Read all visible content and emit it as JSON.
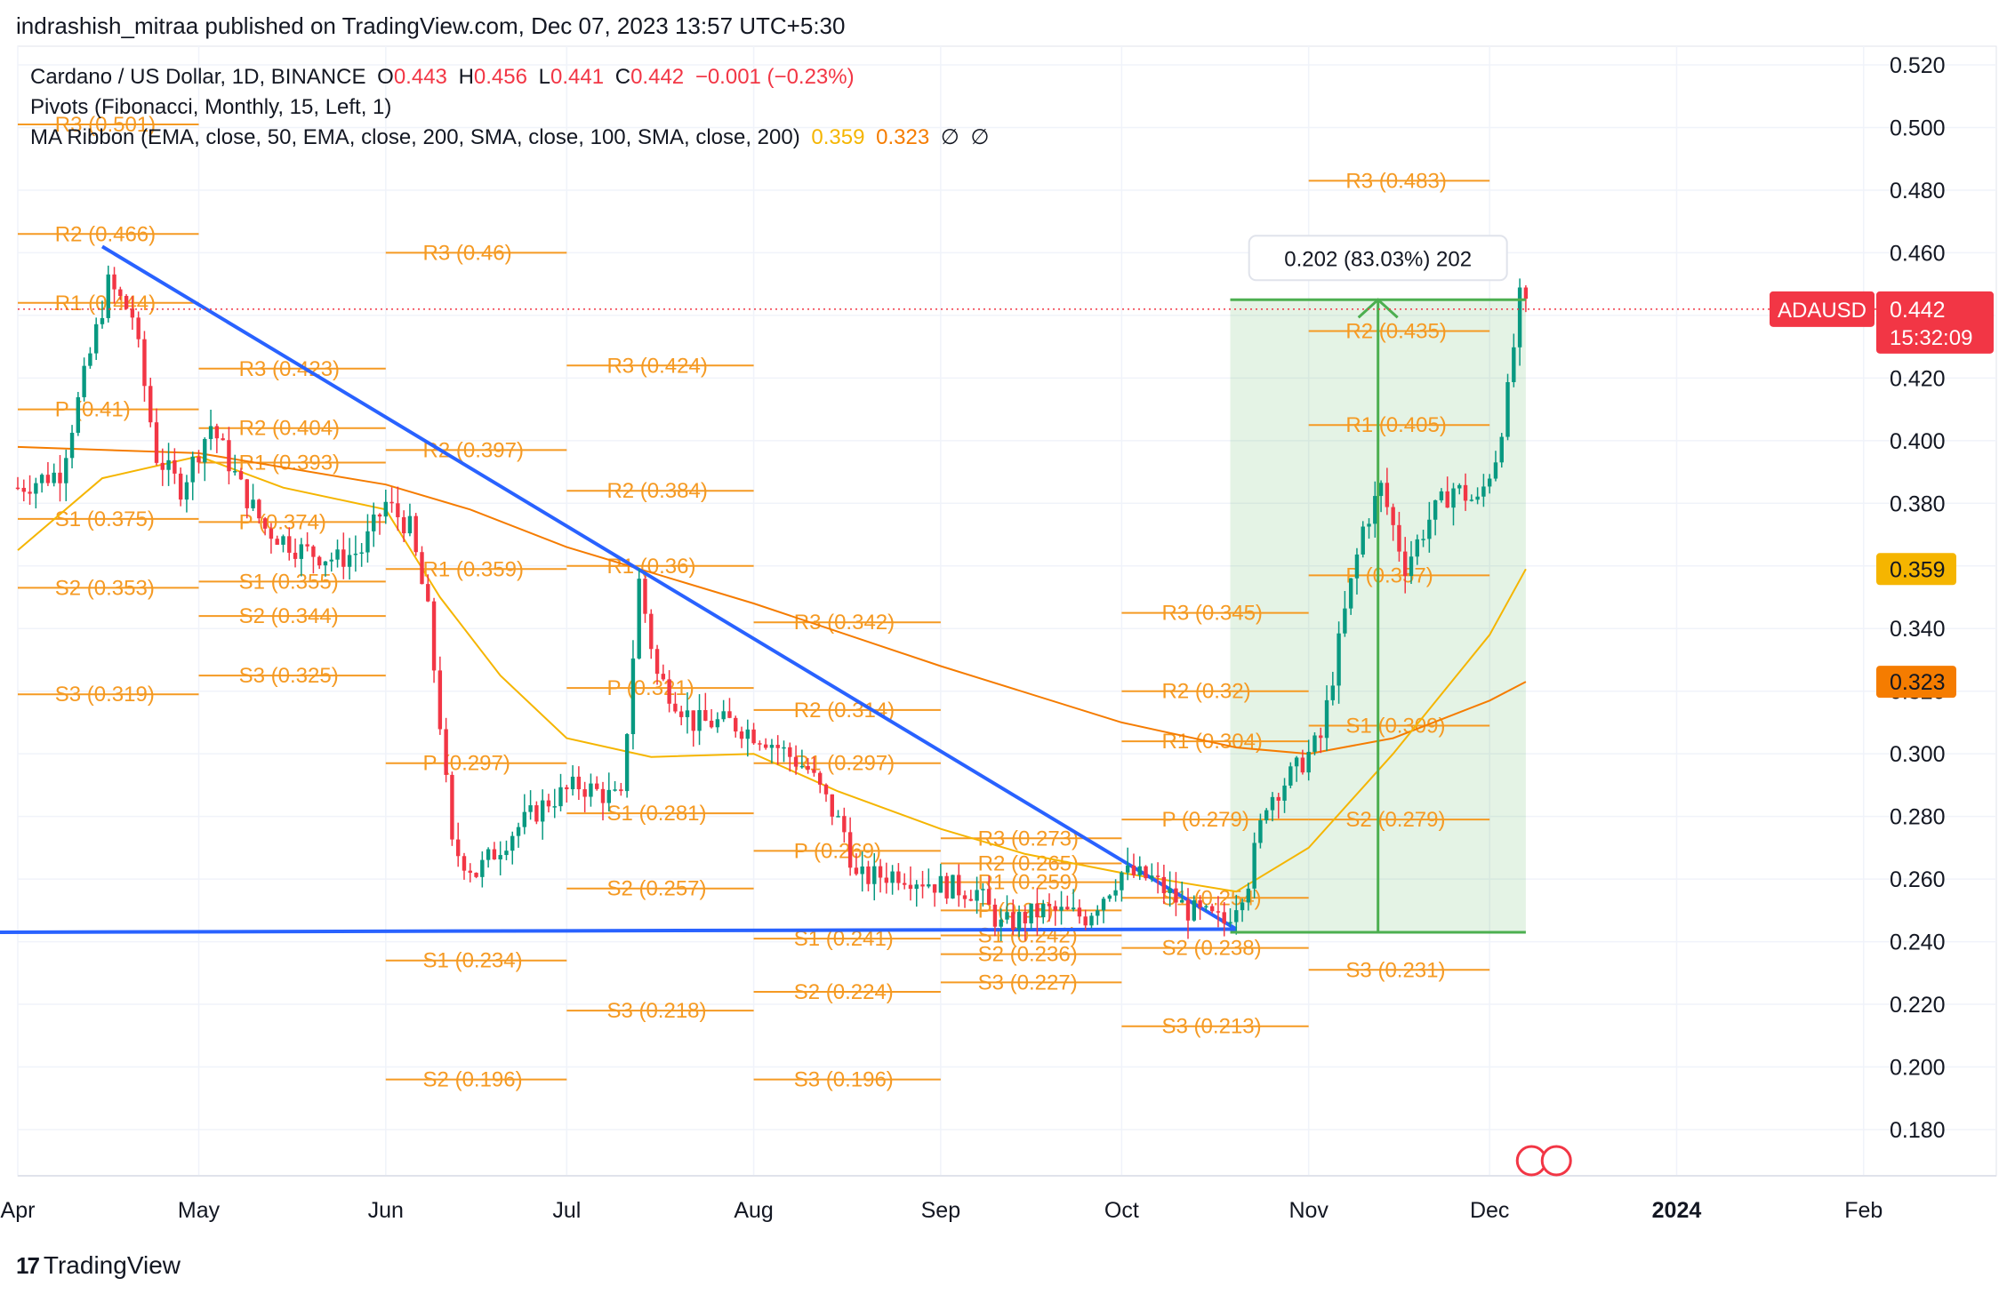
{
  "header": {
    "published": "indrashish_mitraa published on TradingView.com, Dec 07, 2023 13:57 UTC+5:30"
  },
  "legend": {
    "symbol": "Cardano / US Dollar, 1D, BINANCE",
    "o_label": "O",
    "o_value": "0.443",
    "h_label": "H",
    "h_value": "0.456",
    "l_label": "L",
    "l_value": "0.441",
    "c_label": "C",
    "c_value": "0.442",
    "change": "−0.001 (−0.23%)",
    "pivots": "Pivots (Fibonacci, Monthly, 15, Left, 1)",
    "ma_ribbon": "MA Ribbon (EMA, close, 50, EMA, close, 200, SMA, close, 100, SMA, close, 200)",
    "ma1_value": "0.359",
    "ma2_value": "0.323",
    "ma3_value": "∅",
    "ma4_value": "∅"
  },
  "footer": {
    "logo": "17",
    "brand": "TradingView"
  },
  "colors": {
    "candle_up": "#089981",
    "candle_down": "#f23645",
    "pivot": "#f59a23",
    "trendline": "#2962ff",
    "measure": "#4caf50",
    "ema50": "#f5b500",
    "ema200": "#f57c00"
  },
  "chart_data": {
    "type": "candlestick",
    "symbol": "ADAUSD",
    "title": "Cardano / US Dollar, 1D, BINANCE",
    "ylim": [
      0.17,
      0.525
    ],
    "y_ticks": [
      "0.520",
      "0.500",
      "0.480",
      "0.460",
      "0.440",
      "0.420",
      "0.400",
      "0.380",
      "0.360",
      "0.340",
      "0.320",
      "0.300",
      "0.280",
      "0.260",
      "0.240",
      "0.220",
      "0.200",
      "0.180"
    ],
    "x_ticks": [
      "Apr",
      "May",
      "Jun",
      "Jul",
      "Aug",
      "Sep",
      "Oct",
      "Nov",
      "Dec",
      "2024",
      "Feb"
    ],
    "x_tick_dates": [
      "2023-04-01",
      "2023-05-01",
      "2023-06-01",
      "2023-07-01",
      "2023-08-01",
      "2023-09-01",
      "2023-10-01",
      "2023-11-01",
      "2023-12-01",
      "2024-01-01",
      "2024-02-01"
    ],
    "x_range": [
      "2023-04-01",
      "2024-02-23"
    ],
    "price_label": {
      "symbol": "ADAUSD",
      "value": "0.442",
      "countdown": "15:32:09",
      "price": 0.442
    },
    "ma_labels": [
      {
        "value": "0.359",
        "price": 0.359,
        "color": "#f5b500"
      },
      {
        "value": "0.323",
        "price": 0.323,
        "color": "#f57c00"
      }
    ],
    "measure": {
      "label": "0.202 (83.03%) 202",
      "start_date": "2023-10-19",
      "end_date": "2023-12-07",
      "low": 0.243,
      "high": 0.445
    },
    "trendlines": [
      {
        "from": [
          "2023-04-15",
          0.462
        ],
        "to": [
          "2023-10-20",
          0.244
        ]
      },
      {
        "from": [
          "2023-03-25",
          0.243
        ],
        "to": [
          "2023-10-20",
          0.244
        ]
      }
    ],
    "pivots": [
      {
        "month": "2023-04",
        "levels": [
          {
            "label": "R2 (0.466)",
            "value": 0.466
          },
          {
            "label": "R1 (0.444)",
            "value": 0.444
          },
          {
            "label": "P (0.41)",
            "value": 0.41
          },
          {
            "label": "S1 (0.375)",
            "value": 0.375
          },
          {
            "label": "S2 (0.353)",
            "value": 0.353
          },
          {
            "label": "S3 (0.319)",
            "value": 0.319
          },
          {
            "label": "R3 (0.501)",
            "value": 0.501
          }
        ]
      },
      {
        "month": "2023-05",
        "levels": [
          {
            "label": "R3 (0.423)",
            "value": 0.423
          },
          {
            "label": "R2 (0.404)",
            "value": 0.404
          },
          {
            "label": "R1 (0.393)",
            "value": 0.393
          },
          {
            "label": "P (0.374)",
            "value": 0.374
          },
          {
            "label": "S1 (0.355)",
            "value": 0.355
          },
          {
            "label": "S2 (0.344)",
            "value": 0.344
          },
          {
            "label": "S3 (0.325)",
            "value": 0.325
          }
        ]
      },
      {
        "month": "2023-06",
        "levels": [
          {
            "label": "R3 (0.46)",
            "value": 0.46
          },
          {
            "label": "R2 (0.397)",
            "value": 0.397
          },
          {
            "label": "R1 (0.359)",
            "value": 0.359
          },
          {
            "label": "P (0.297)",
            "value": 0.297
          },
          {
            "label": "S1 (0.234)",
            "value": 0.234
          },
          {
            "label": "S2 (0.196)",
            "value": 0.196
          }
        ]
      },
      {
        "month": "2023-07",
        "levels": [
          {
            "label": "R3 (0.424)",
            "value": 0.424
          },
          {
            "label": "R2 (0.384)",
            "value": 0.384
          },
          {
            "label": "R1 (0.36)",
            "value": 0.36
          },
          {
            "label": "P (0.321)",
            "value": 0.321
          },
          {
            "label": "S1 (0.281)",
            "value": 0.281
          },
          {
            "label": "S2 (0.257)",
            "value": 0.257
          },
          {
            "label": "S3 (0.218)",
            "value": 0.218
          }
        ]
      },
      {
        "month": "2023-08",
        "levels": [
          {
            "label": "R3 (0.342)",
            "value": 0.342
          },
          {
            "label": "R2 (0.314)",
            "value": 0.314
          },
          {
            "label": "R1 (0.297)",
            "value": 0.297
          },
          {
            "label": "P (0.269)",
            "value": 0.269
          },
          {
            "label": "S1 (0.241)",
            "value": 0.241
          },
          {
            "label": "S2 (0.224)",
            "value": 0.224
          },
          {
            "label": "S3 (0.196)",
            "value": 0.196
          }
        ]
      },
      {
        "month": "2023-09",
        "levels": [
          {
            "label": "R3 (0.273)",
            "value": 0.273
          },
          {
            "label": "R2 (0.265)",
            "value": 0.265
          },
          {
            "label": "R1 (0.259)",
            "value": 0.259
          },
          {
            "label": "P (0.25)",
            "value": 0.25
          },
          {
            "label": "S1 (0.242)",
            "value": 0.242
          },
          {
            "label": "S2 (0.236)",
            "value": 0.236
          },
          {
            "label": "S3 (0.227)",
            "value": 0.227
          }
        ]
      },
      {
        "month": "2023-10",
        "levels": [
          {
            "label": "R3 (0.345)",
            "value": 0.345
          },
          {
            "label": "R2 (0.32)",
            "value": 0.32
          },
          {
            "label": "R1 (0.304)",
            "value": 0.304
          },
          {
            "label": "P (0.279)",
            "value": 0.279
          },
          {
            "label": "S1 (0.254)",
            "value": 0.254
          },
          {
            "label": "S2 (0.238)",
            "value": 0.238
          },
          {
            "label": "S3 (0.213)",
            "value": 0.213
          }
        ]
      },
      {
        "month": "2023-11",
        "levels": [
          {
            "label": "R3 (0.483)",
            "value": 0.483
          },
          {
            "label": "R2 (0.435)",
            "value": 0.435
          },
          {
            "label": "R1 (0.405)",
            "value": 0.405
          },
          {
            "label": "P (0.357)",
            "value": 0.357
          },
          {
            "label": "S1 (0.309)",
            "value": 0.309
          },
          {
            "label": "S2 (0.279)",
            "value": 0.279
          },
          {
            "label": "S3 (0.231)",
            "value": 0.231
          }
        ]
      }
    ],
    "ema50": [
      [
        "2023-04-01",
        0.365
      ],
      [
        "2023-04-15",
        0.388
      ],
      [
        "2023-05-01",
        0.395
      ],
      [
        "2023-05-15",
        0.385
      ],
      [
        "2023-06-01",
        0.378
      ],
      [
        "2023-06-10",
        0.35
      ],
      [
        "2023-06-20",
        0.325
      ],
      [
        "2023-07-01",
        0.305
      ],
      [
        "2023-07-15",
        0.299
      ],
      [
        "2023-08-01",
        0.3
      ],
      [
        "2023-08-15",
        0.288
      ],
      [
        "2023-09-01",
        0.276
      ],
      [
        "2023-09-15",
        0.268
      ],
      [
        "2023-10-01",
        0.262
      ],
      [
        "2023-10-20",
        0.256
      ],
      [
        "2023-11-01",
        0.27
      ],
      [
        "2023-11-15",
        0.3
      ],
      [
        "2023-12-01",
        0.338
      ],
      [
        "2023-12-07",
        0.359
      ]
    ],
    "ema200": [
      [
        "2023-04-01",
        0.398
      ],
      [
        "2023-05-01",
        0.396
      ],
      [
        "2023-06-01",
        0.386
      ],
      [
        "2023-06-15",
        0.378
      ],
      [
        "2023-07-01",
        0.366
      ],
      [
        "2023-08-01",
        0.348
      ],
      [
        "2023-09-01",
        0.328
      ],
      [
        "2023-10-01",
        0.31
      ],
      [
        "2023-10-20",
        0.302
      ],
      [
        "2023-11-01",
        0.3
      ],
      [
        "2023-11-15",
        0.305
      ],
      [
        "2023-12-01",
        0.317
      ],
      [
        "2023-12-07",
        0.323
      ]
    ],
    "close_path": [
      [
        "2023-04-01",
        0.385
      ],
      [
        "2023-04-08",
        0.39
      ],
      [
        "2023-04-12",
        0.42
      ],
      [
        "2023-04-16",
        0.45
      ],
      [
        "2023-04-20",
        0.44
      ],
      [
        "2023-04-24",
        0.395
      ],
      [
        "2023-04-28",
        0.385
      ],
      [
        "2023-05-03",
        0.405
      ],
      [
        "2023-05-08",
        0.385
      ],
      [
        "2023-05-12",
        0.372
      ],
      [
        "2023-05-18",
        0.365
      ],
      [
        "2023-05-24",
        0.362
      ],
      [
        "2023-05-28",
        0.365
      ],
      [
        "2023-06-01",
        0.38
      ],
      [
        "2023-06-05",
        0.372
      ],
      [
        "2023-06-08",
        0.345
      ],
      [
        "2023-06-10",
        0.31
      ],
      [
        "2023-06-12",
        0.27
      ],
      [
        "2023-06-16",
        0.262
      ],
      [
        "2023-06-22",
        0.275
      ],
      [
        "2023-06-28",
        0.285
      ],
      [
        "2023-07-03",
        0.29
      ],
      [
        "2023-07-10",
        0.285
      ],
      [
        "2023-07-13",
        0.355
      ],
      [
        "2023-07-16",
        0.325
      ],
      [
        "2023-07-22",
        0.31
      ],
      [
        "2023-07-28",
        0.31
      ],
      [
        "2023-08-03",
        0.305
      ],
      [
        "2023-08-10",
        0.295
      ],
      [
        "2023-08-16",
        0.275
      ],
      [
        "2023-08-18",
        0.26
      ],
      [
        "2023-08-25",
        0.262
      ],
      [
        "2023-09-01",
        0.258
      ],
      [
        "2023-09-07",
        0.256
      ],
      [
        "2023-09-11",
        0.245
      ],
      [
        "2023-09-18",
        0.25
      ],
      [
        "2023-09-25",
        0.248
      ],
      [
        "2023-10-01",
        0.262
      ],
      [
        "2023-10-06",
        0.26
      ],
      [
        "2023-10-12",
        0.25
      ],
      [
        "2023-10-18",
        0.246
      ],
      [
        "2023-10-22",
        0.26
      ],
      [
        "2023-10-25",
        0.285
      ],
      [
        "2023-10-30",
        0.295
      ],
      [
        "2023-11-03",
        0.305
      ],
      [
        "2023-11-07",
        0.345
      ],
      [
        "2023-11-10",
        0.372
      ],
      [
        "2023-11-13",
        0.385
      ],
      [
        "2023-11-17",
        0.36
      ],
      [
        "2023-11-21",
        0.375
      ],
      [
        "2023-11-25",
        0.385
      ],
      [
        "2023-11-29",
        0.38
      ],
      [
        "2023-12-02",
        0.395
      ],
      [
        "2023-12-04",
        0.415
      ],
      [
        "2023-12-06",
        0.445
      ],
      [
        "2023-12-07",
        0.442
      ]
    ]
  }
}
